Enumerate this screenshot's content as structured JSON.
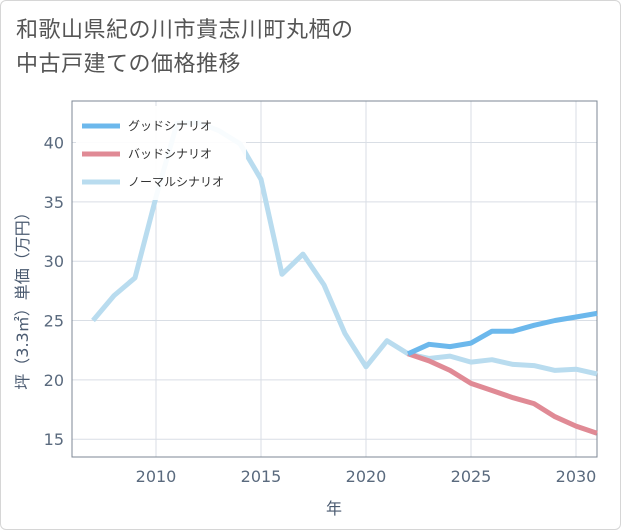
{
  "page": {
    "title": "和歌山県紀の川市貴志川町丸栖の\n中古戸建ての価格推移"
  },
  "chart_data": {
    "type": "line",
    "xlabel": "年",
    "ylabel": "坪（3.3㎡）単価（万円）",
    "xlim": [
      2006,
      2031
    ],
    "ylim": [
      13.5,
      43.5
    ],
    "xticks": [
      2010,
      2015,
      2020,
      2025,
      2030
    ],
    "yticks": [
      15,
      20,
      25,
      30,
      35,
      40
    ],
    "grid": true,
    "legend_position": "top-left",
    "series": [
      {
        "name": "グッドシナリオ",
        "color": "#6cb8ec",
        "x": [
          2022,
          2023,
          2024,
          2025,
          2026,
          2027,
          2028,
          2029,
          2030,
          2031
        ],
        "values": [
          22.2,
          23.0,
          22.8,
          23.1,
          24.1,
          24.1,
          24.6,
          25.0,
          25.3,
          25.6
        ]
      },
      {
        "name": "バッドシナリオ",
        "color": "#e08a95",
        "x": [
          2022,
          2023,
          2024,
          2025,
          2026,
          2027,
          2028,
          2029,
          2030,
          2031
        ],
        "values": [
          22.2,
          21.6,
          20.8,
          19.7,
          19.1,
          18.5,
          18.0,
          16.9,
          16.1,
          15.5
        ]
      },
      {
        "name": "ノーマルシナリオ",
        "color": "#b9dcef",
        "x": [
          2007,
          2008,
          2009,
          2010,
          2011,
          2012,
          2013,
          2014,
          2015,
          2016,
          2017,
          2018,
          2019,
          2020,
          2021,
          2022,
          2023,
          2024,
          2025,
          2026,
          2027,
          2028,
          2029,
          2030,
          2031
        ],
        "values": [
          25.0,
          27.1,
          28.6,
          35.4,
          41.6,
          41.7,
          41.0,
          39.9,
          36.9,
          28.9,
          30.6,
          28.0,
          23.9,
          21.1,
          23.3,
          22.2,
          21.8,
          22.0,
          21.5,
          21.7,
          21.3,
          21.2,
          20.8,
          20.9,
          20.5
        ]
      }
    ]
  }
}
